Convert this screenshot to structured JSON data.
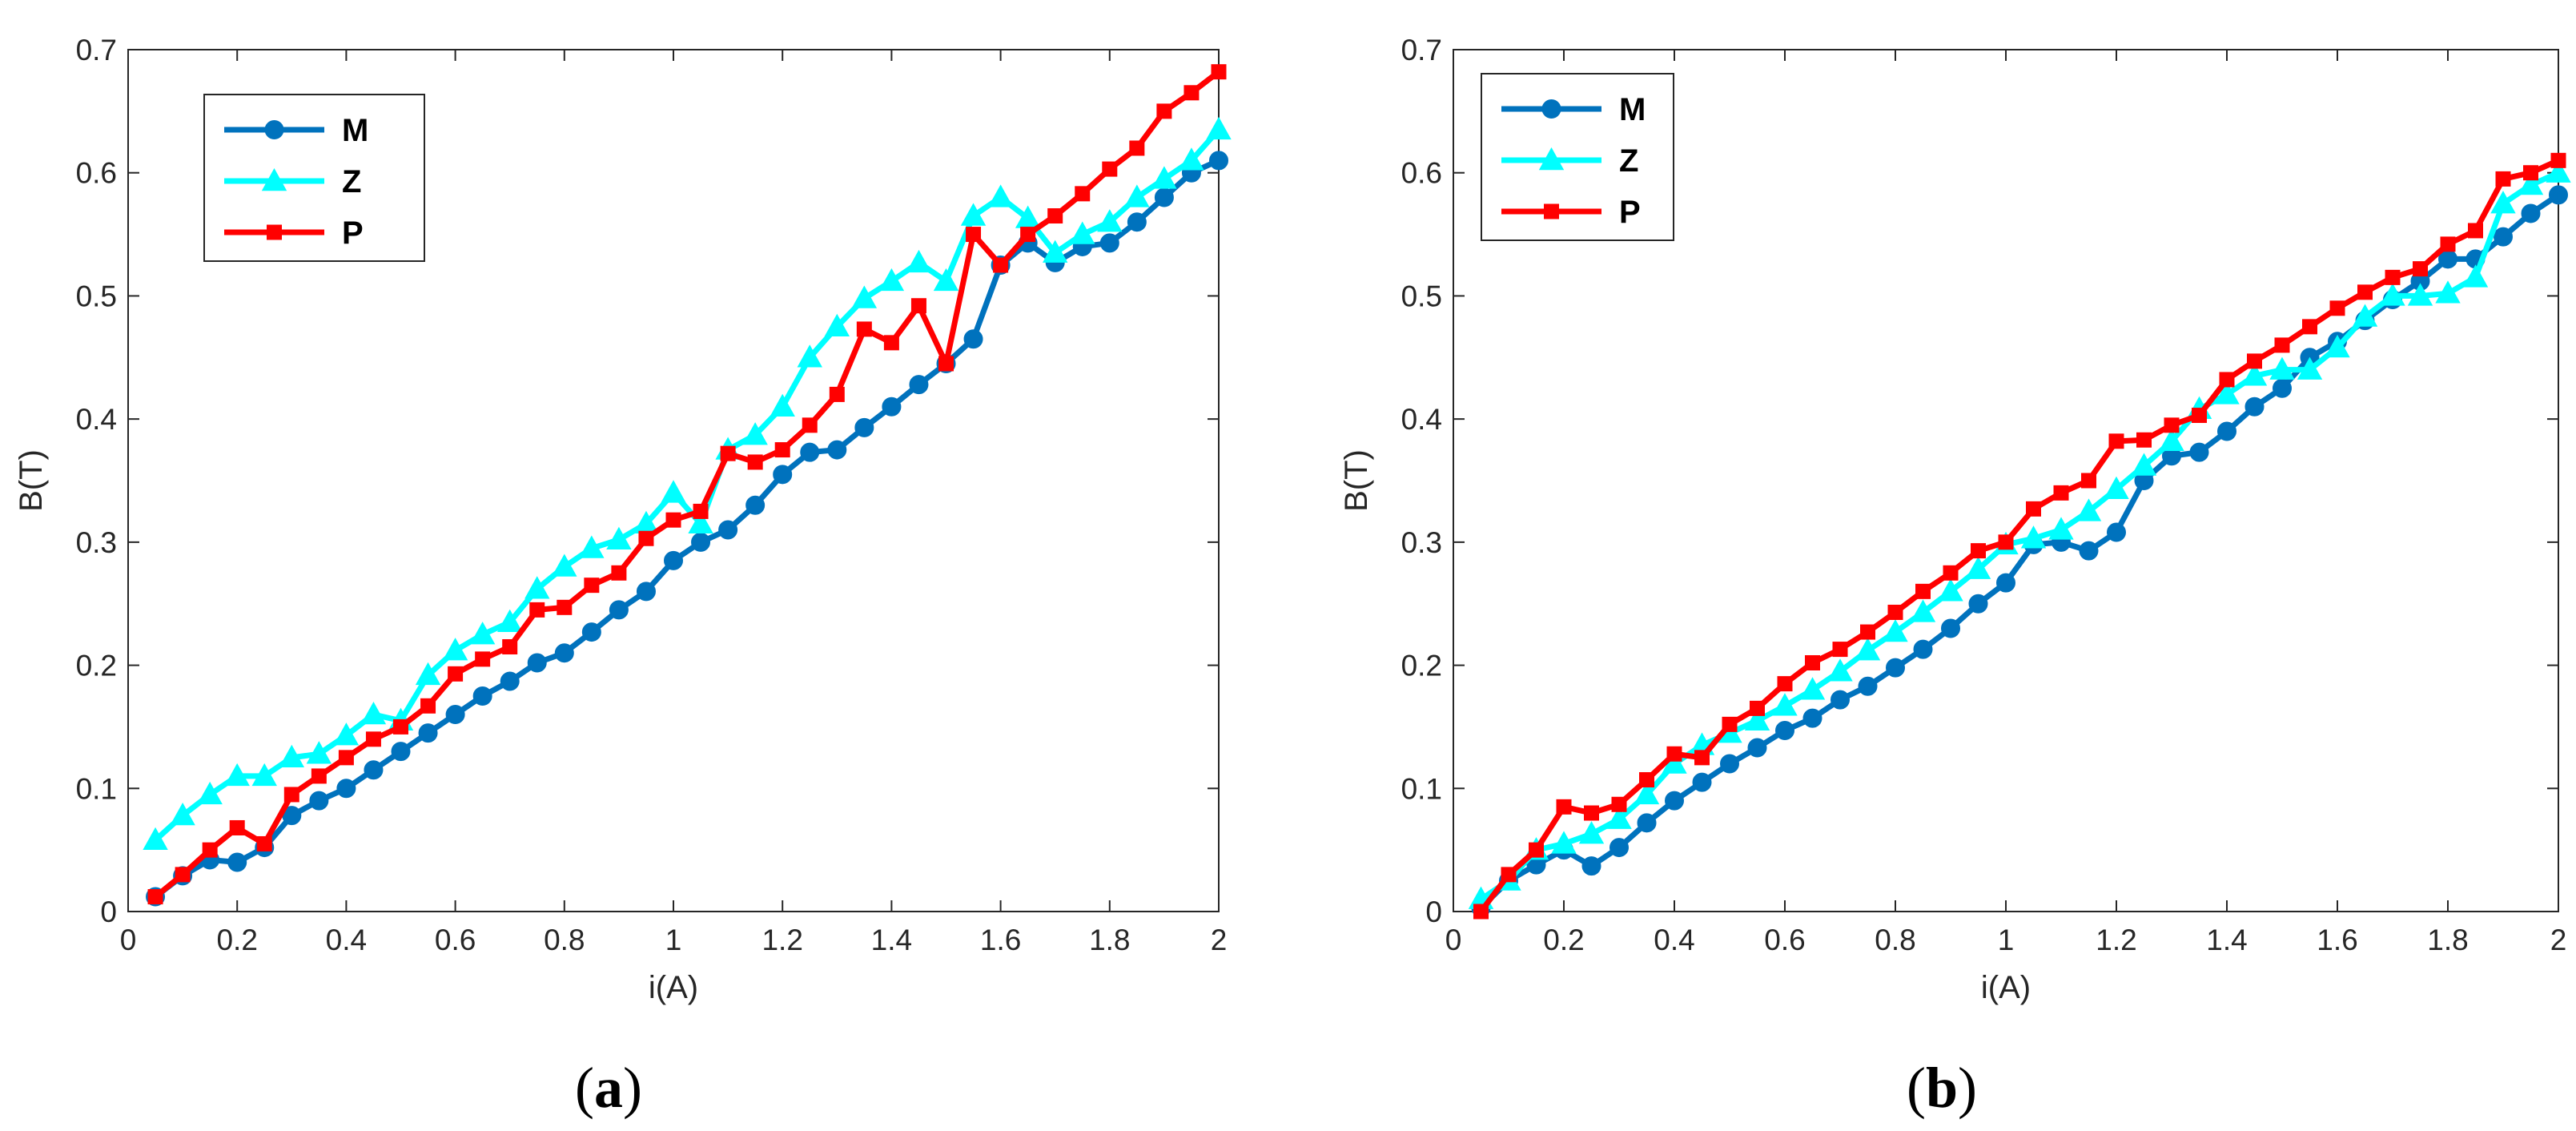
{
  "colors": {
    "M": "#0072BD",
    "Z": "#00FFFF",
    "P": "#FF0000",
    "axis": "#262626",
    "bg": "#ffffff"
  },
  "chart_data": [
    {
      "type": "line",
      "caption": {
        "open": "(",
        "letter": "a",
        "close": ")"
      },
      "xlabel": "i(A)",
      "ylabel": "B(T)",
      "xlim": [
        0,
        2
      ],
      "ylim": [
        0,
        0.7
      ],
      "xticks": [
        "0",
        "0.2",
        "0.4",
        "0.6",
        "0.8",
        "1",
        "1.2",
        "1.4",
        "1.6",
        "1.8",
        "2"
      ],
      "yticks": [
        "0",
        "0.1",
        "0.2",
        "0.3",
        "0.4",
        "0.5",
        "0.6",
        "0.7"
      ],
      "legend": "top-left",
      "grid": false,
      "x": [
        0.05,
        0.1,
        0.15,
        0.2,
        0.25,
        0.3,
        0.35,
        0.4,
        0.45,
        0.5,
        0.55,
        0.6,
        0.65,
        0.7,
        0.75,
        0.8,
        0.85,
        0.9,
        0.95,
        1.0,
        1.05,
        1.1,
        1.15,
        1.2,
        1.25,
        1.3,
        1.35,
        1.4,
        1.45,
        1.5,
        1.55,
        1.6,
        1.65,
        1.7,
        1.75,
        1.8,
        1.85,
        1.9,
        1.95,
        2.0
      ],
      "series": [
        {
          "name": "M",
          "marker": "circle",
          "values": [
            0.012,
            0.029,
            0.042,
            0.04,
            0.052,
            0.078,
            0.09,
            0.1,
            0.115,
            0.13,
            0.145,
            0.16,
            0.175,
            0.187,
            0.202,
            0.21,
            0.227,
            0.245,
            0.26,
            0.285,
            0.3,
            0.31,
            0.33,
            0.355,
            0.373,
            0.375,
            0.393,
            0.41,
            0.428,
            0.445,
            0.465,
            0.525,
            0.543,
            0.527,
            0.54,
            0.543,
            0.56,
            0.58,
            0.6,
            0.61
          ]
        },
        {
          "name": "Z",
          "marker": "triangle",
          "values": [
            0.058,
            0.078,
            0.095,
            0.11,
            0.11,
            0.125,
            0.128,
            0.143,
            0.16,
            0.155,
            0.192,
            0.212,
            0.225,
            0.235,
            0.262,
            0.28,
            0.295,
            0.302,
            0.315,
            0.34,
            0.315,
            0.375,
            0.387,
            0.41,
            0.45,
            0.475,
            0.498,
            0.512,
            0.527,
            0.512,
            0.565,
            0.58,
            0.563,
            0.535,
            0.55,
            0.56,
            0.58,
            0.595,
            0.61,
            0.635
          ]
        },
        {
          "name": "P",
          "marker": "square",
          "values": [
            0.012,
            0.03,
            0.05,
            0.068,
            0.055,
            0.095,
            0.11,
            0.125,
            0.14,
            0.15,
            0.167,
            0.193,
            0.205,
            0.215,
            0.245,
            0.247,
            0.265,
            0.275,
            0.303,
            0.318,
            0.325,
            0.372,
            0.365,
            0.375,
            0.395,
            0.42,
            0.473,
            0.462,
            0.492,
            0.445,
            0.55,
            0.525,
            0.55,
            0.565,
            0.583,
            0.603,
            0.62,
            0.65,
            0.665,
            0.682
          ]
        }
      ]
    },
    {
      "type": "line",
      "caption": {
        "open": "(",
        "letter": "b",
        "close": ")"
      },
      "xlabel": "i(A)",
      "ylabel": "B(T)",
      "xlim": [
        0,
        2
      ],
      "ylim": [
        0,
        0.7
      ],
      "xticks": [
        "0",
        "0.2",
        "0.4",
        "0.6",
        "0.8",
        "1",
        "1.2",
        "1.4",
        "1.6",
        "1.8",
        "2"
      ],
      "yticks": [
        "0",
        "0.1",
        "0.2",
        "0.3",
        "0.4",
        "0.5",
        "0.6",
        "0.7"
      ],
      "legend": "top-left",
      "grid": false,
      "x": [
        0.05,
        0.1,
        0.15,
        0.2,
        0.25,
        0.3,
        0.35,
        0.4,
        0.45,
        0.5,
        0.55,
        0.6,
        0.65,
        0.7,
        0.75,
        0.8,
        0.85,
        0.9,
        0.95,
        1.0,
        1.05,
        1.1,
        1.15,
        1.2,
        1.25,
        1.3,
        1.35,
        1.4,
        1.45,
        1.5,
        1.55,
        1.6,
        1.65,
        1.7,
        1.75,
        1.8,
        1.85,
        1.9,
        1.95,
        2.0
      ],
      "series": [
        {
          "name": "M",
          "marker": "circle",
          "values": [
            0.003,
            0.025,
            0.038,
            0.05,
            0.037,
            0.052,
            0.072,
            0.09,
            0.105,
            0.12,
            0.133,
            0.147,
            0.157,
            0.172,
            0.183,
            0.198,
            0.213,
            0.23,
            0.25,
            0.267,
            0.298,
            0.3,
            0.293,
            0.308,
            0.35,
            0.37,
            0.373,
            0.39,
            0.41,
            0.425,
            0.45,
            0.463,
            0.48,
            0.497,
            0.512,
            0.53,
            0.53,
            0.548,
            0.567,
            0.582
          ]
        },
        {
          "name": "Z",
          "marker": "triangle",
          "values": [
            0.01,
            0.025,
            0.05,
            0.055,
            0.063,
            0.075,
            0.095,
            0.12,
            0.135,
            0.145,
            0.155,
            0.167,
            0.18,
            0.195,
            0.212,
            0.227,
            0.243,
            0.26,
            0.278,
            0.298,
            0.303,
            0.31,
            0.325,
            0.343,
            0.362,
            0.382,
            0.408,
            0.42,
            0.435,
            0.44,
            0.44,
            0.458,
            0.483,
            0.5,
            0.5,
            0.502,
            0.515,
            0.575,
            0.59,
            0.6
          ]
        },
        {
          "name": "P",
          "marker": "square",
          "values": [
            0.0,
            0.03,
            0.05,
            0.085,
            0.08,
            0.087,
            0.107,
            0.128,
            0.125,
            0.152,
            0.165,
            0.185,
            0.202,
            0.213,
            0.227,
            0.243,
            0.26,
            0.275,
            0.293,
            0.3,
            0.327,
            0.34,
            0.35,
            0.382,
            0.383,
            0.395,
            0.403,
            0.432,
            0.447,
            0.46,
            0.475,
            0.49,
            0.503,
            0.515,
            0.522,
            0.542,
            0.553,
            0.595,
            0.6,
            0.61
          ]
        }
      ]
    }
  ]
}
